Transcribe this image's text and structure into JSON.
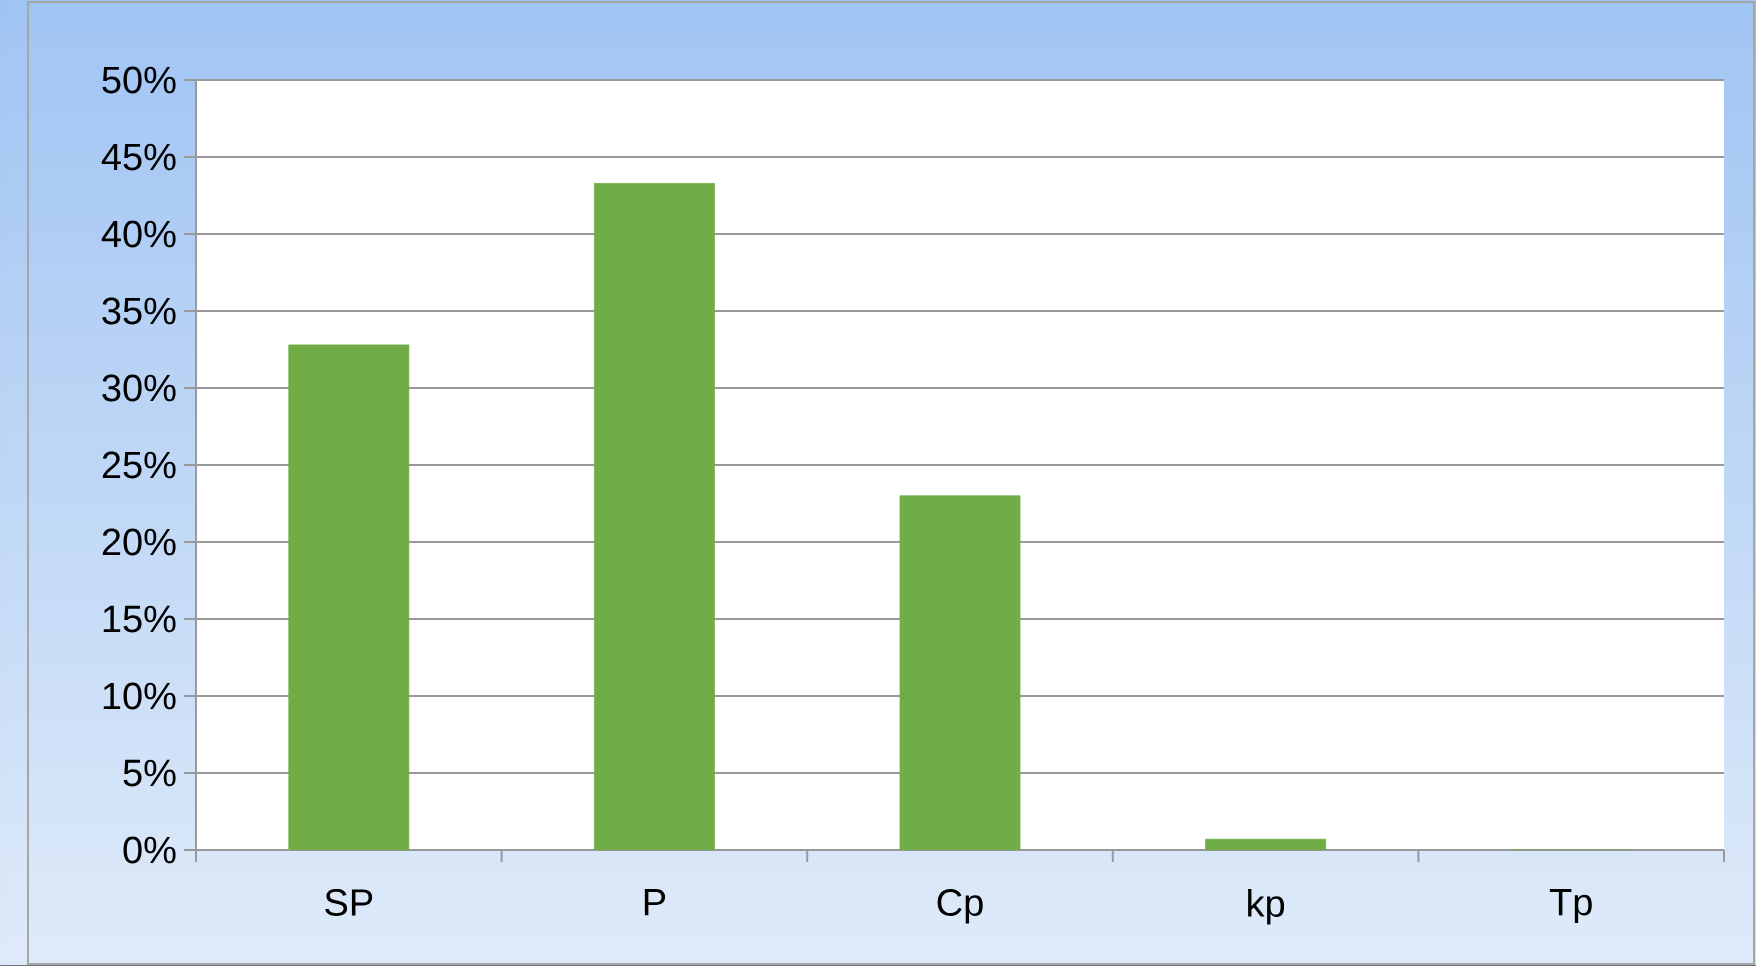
{
  "chart_data": {
    "type": "bar",
    "categories": [
      "SP",
      "P",
      "Cp",
      "kp",
      "Tp"
    ],
    "values": [
      32.8,
      43.3,
      23.0,
      0.7,
      0
    ],
    "color": "#70ad47",
    "ylim": [
      0,
      50
    ],
    "yticks": [
      {
        "value": 0,
        "label": "0%"
      },
      {
        "value": 5,
        "label": "5%"
      },
      {
        "value": 10,
        "label": "10%"
      },
      {
        "value": 15,
        "label": "15%"
      },
      {
        "value": 20,
        "label": "20%"
      },
      {
        "value": 25,
        "label": "25%"
      },
      {
        "value": 30,
        "label": "30%"
      },
      {
        "value": 35,
        "label": "35%"
      },
      {
        "value": 40,
        "label": "40%"
      },
      {
        "value": 45,
        "label": "45%"
      },
      {
        "value": 50,
        "label": "50%"
      }
    ],
    "grid": "y"
  }
}
